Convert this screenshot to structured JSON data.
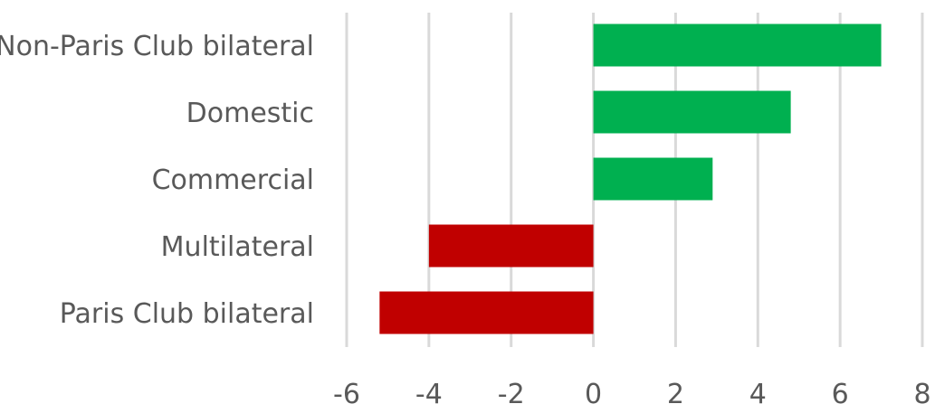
{
  "chart_data": {
    "type": "bar",
    "orientation": "horizontal",
    "categories": [
      "Non-Paris Club bilateral",
      "Domestic",
      "Commercial",
      "Multilateral",
      "Paris Club bilateral"
    ],
    "values": [
      7.0,
      4.8,
      2.9,
      -4.0,
      -5.2
    ],
    "xlim": [
      -6,
      8
    ],
    "x_ticks": [
      -6,
      -4,
      -2,
      0,
      2,
      4,
      6,
      8
    ],
    "title": "",
    "xlabel": "",
    "ylabel": "",
    "grid": "vertical",
    "legend": "none",
    "positive_color": "#00b050",
    "negative_color": "#c00000"
  }
}
